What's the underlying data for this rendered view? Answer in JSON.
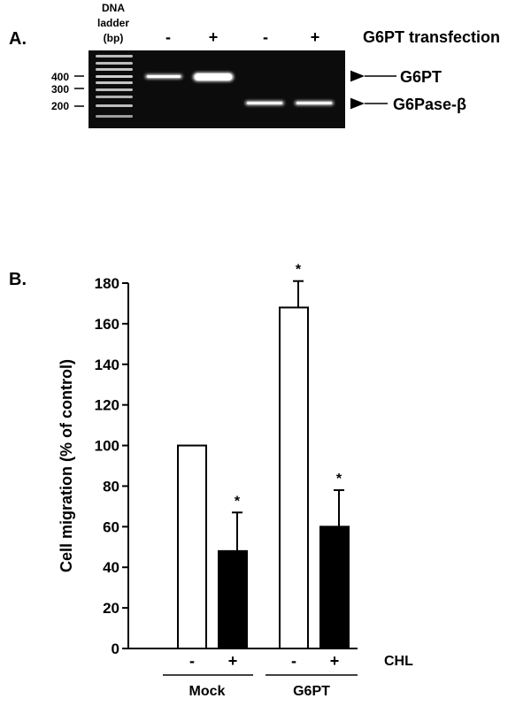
{
  "panel_a": {
    "label": "A.",
    "ladder_header": [
      "DNA",
      "ladder",
      "(bp)"
    ],
    "transfection_label": "G6PT transfection",
    "lane_signs": [
      "-",
      "+",
      "-",
      "+"
    ],
    "size_markers": [
      "400",
      "300",
      "200"
    ],
    "band_labels": [
      "G6PT",
      "G6Pase-β"
    ]
  },
  "panel_b": {
    "label": "B.",
    "treatment_label": "CHL",
    "group_labels": [
      "Mock",
      "G6PT"
    ]
  },
  "chart_data": {
    "type": "bar",
    "ylabel": "Cell migration (% of control)",
    "ylim": [
      0,
      180
    ],
    "yticks": [
      "0",
      "20",
      "40",
      "60",
      "80",
      "100",
      "120",
      "140",
      "160",
      "180"
    ],
    "categories": [
      "-",
      "+",
      "-",
      "+"
    ],
    "groups": [
      "Mock",
      "Mock",
      "G6PT",
      "G6PT"
    ],
    "values": [
      100,
      48,
      168,
      60
    ],
    "errors": [
      0,
      19,
      13,
      18
    ],
    "significance": [
      "",
      "*",
      "*",
      "*"
    ],
    "bar_colors": [
      "#ffffff",
      "#000000",
      "#ffffff",
      "#000000"
    ]
  }
}
